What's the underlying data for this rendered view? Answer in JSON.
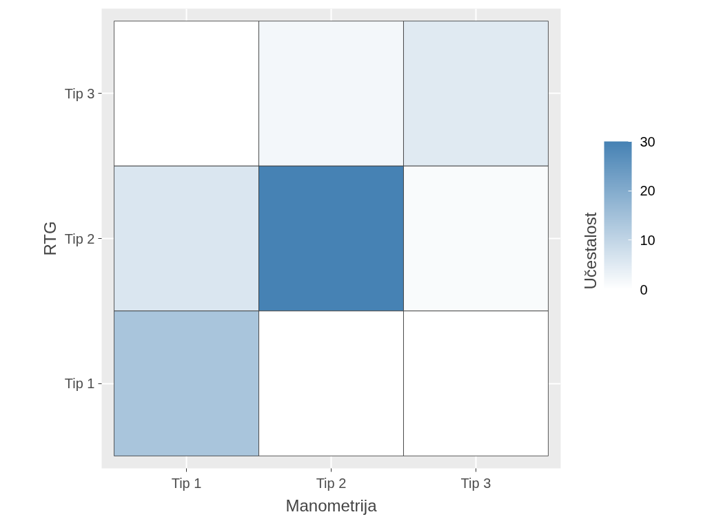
{
  "chart_data": {
    "type": "heatmap",
    "xlabel": "Manometrija",
    "ylabel": "RTG",
    "legend_title": "Učestalost",
    "categories": [
      "Tip 1",
      "Tip 2",
      "Tip 3"
    ],
    "y_categories": [
      "Tip 3",
      "Tip 2",
      "Tip 1"
    ],
    "cells": [
      [
        0,
        2,
        5
      ],
      [
        6,
        30,
        1
      ],
      [
        14,
        0,
        0
      ]
    ],
    "clim": [
      0,
      30
    ],
    "cticks": [
      0,
      10,
      20,
      30
    ],
    "grid": true
  }
}
